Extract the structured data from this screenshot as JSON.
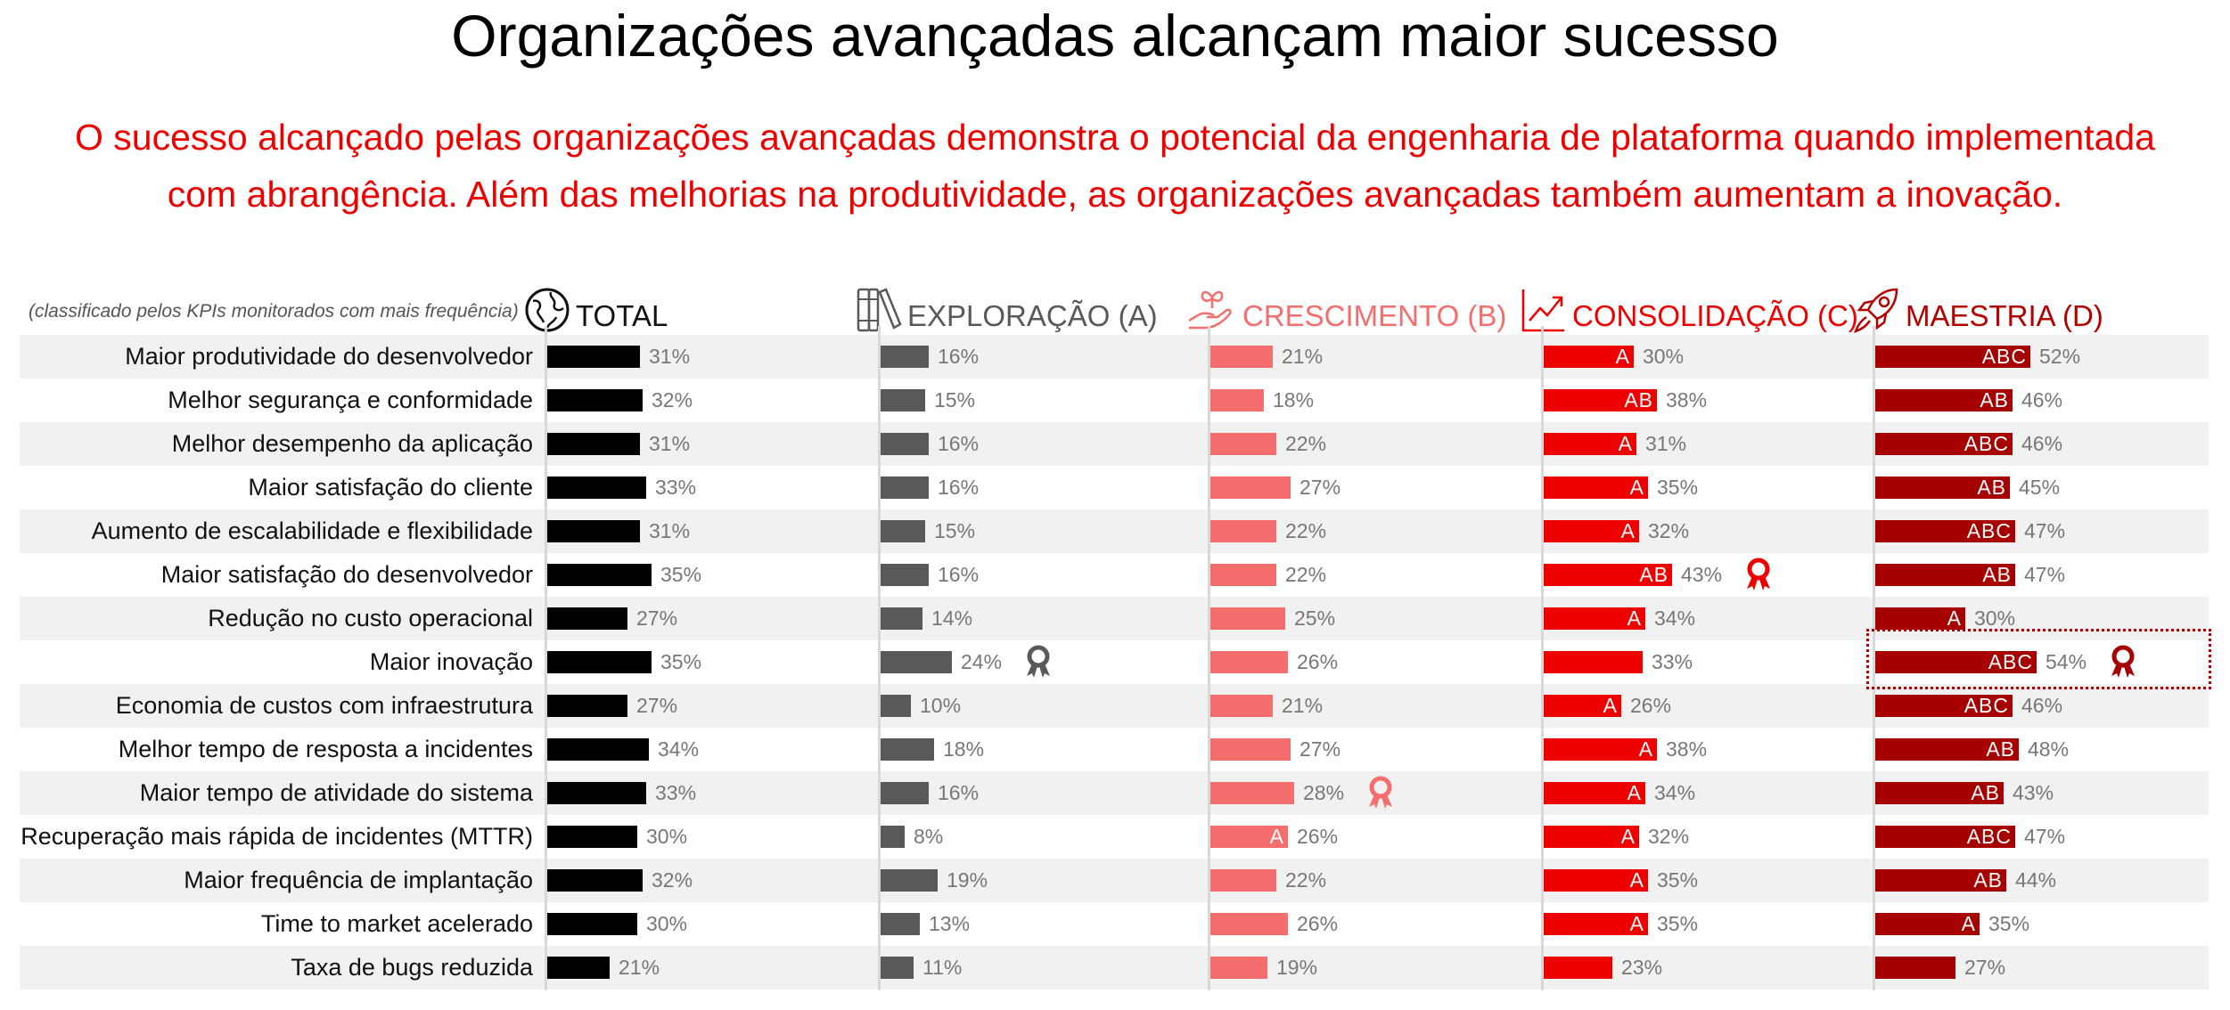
{
  "title": "Organizações avançadas alcançam maior sucesso",
  "subtitle": {
    "line1": "O sucesso alcançado pelas organizações avançadas demonstra o potencial da engenharia de plataforma quando implementada",
    "line2": "com abrangência. Além das melhorias na produtividade, as organizações avançadas também aumentam a inovação."
  },
  "note": "(classificado pelos KPIs monitorados com mais frequência)",
  "columns": [
    {
      "label": "TOTAL",
      "icon": "globe-icon",
      "color": "#000000",
      "text_color": "#111111"
    },
    {
      "label": "EXPLORAÇÃO (A)",
      "icon": "books-icon",
      "color": "#595959",
      "text_color": "#595959"
    },
    {
      "label": "CRESCIMENTO (B)",
      "icon": "sprout-hand-icon",
      "color": "#f56e6e",
      "text_color": "#f56e6e"
    },
    {
      "label": "CONSOLIDAÇÃO (C)",
      "icon": "growth-chart-icon",
      "color": "#ee0000",
      "text_color": "#ee0000"
    },
    {
      "label": "MAESTRIA (D)",
      "icon": "rocket-icon",
      "color": "#a60000",
      "text_color": "#b30000"
    }
  ],
  "chart_data": {
    "type": "bar",
    "title": "Organizações avançadas alcançam maior sucesso",
    "subtitle": "O sucesso alcançado pelas organizações avançadas demonstra o potencial da engenharia de plataforma quando implementada com abrangência. Além das melhorias na produtividade, as organizações avançadas também aumentam a inovação.",
    "note": "(classificado pelos KPIs monitorados com mais frequência)",
    "orientation": "horizontal",
    "categories": [
      "Maior produtividade do desenvolvedor",
      "Melhor segurança e conformidade",
      "Melhor desempenho da aplicação",
      "Maior satisfação do cliente",
      "Aumento de escalabilidade e flexibilidade",
      "Maior satisfação do desenvolvedor",
      "Redução no custo operacional",
      "Maior inovação",
      "Economia de custos com infraestrutura",
      "Melhor tempo de resposta a incidentes",
      "Maior tempo de atividade do sistema",
      "Recuperação mais rápida de incidentes (MTTR)",
      "Maior frequência de implantação",
      "Time to market acelerado",
      "Taxa de bugs reduzida"
    ],
    "series": [
      {
        "name": "TOTAL",
        "values": [
          31,
          32,
          31,
          33,
          31,
          35,
          27,
          35,
          27,
          34,
          33,
          30,
          32,
          30,
          21
        ],
        "sig": [
          "",
          "",
          "",
          "",
          "",
          "",
          "",
          "",
          "",
          "",
          "",
          "",
          "",
          "",
          ""
        ]
      },
      {
        "name": "EXPLORAÇÃO (A)",
        "values": [
          16,
          15,
          16,
          16,
          15,
          16,
          14,
          24,
          10,
          18,
          16,
          8,
          19,
          13,
          11
        ],
        "sig": [
          "",
          "",
          "",
          "",
          "",
          "",
          "",
          "",
          "",
          "",
          "",
          "",
          "",
          "",
          ""
        ]
      },
      {
        "name": "CRESCIMENTO (B)",
        "values": [
          21,
          18,
          22,
          27,
          22,
          22,
          25,
          26,
          21,
          27,
          28,
          26,
          22,
          26,
          19
        ],
        "sig": [
          "",
          "",
          "",
          "",
          "",
          "",
          "",
          "",
          "",
          "",
          "",
          "A",
          "",
          "",
          ""
        ]
      },
      {
        "name": "CONSOLIDAÇÃO (C)",
        "values": [
          30,
          38,
          31,
          35,
          32,
          43,
          34,
          33,
          26,
          38,
          34,
          32,
          35,
          35,
          23
        ],
        "sig": [
          "A",
          "AB",
          "A",
          "A",
          "A",
          "AB",
          "A",
          "",
          "A",
          "A",
          "A",
          "A",
          "A",
          "A",
          ""
        ]
      },
      {
        "name": "MAESTRIA (D)",
        "values": [
          52,
          46,
          46,
          45,
          47,
          47,
          30,
          54,
          46,
          48,
          43,
          47,
          44,
          35,
          27
        ],
        "sig": [
          "ABC",
          "AB",
          "ABC",
          "AB",
          "ABC",
          "AB",
          "A",
          "ABC",
          "ABC",
          "AB",
          "AB",
          "ABC",
          "AB",
          "A",
          ""
        ]
      }
    ],
    "awards": [
      {
        "series": "EXPLORAÇÃO (A)",
        "category": "Maior inovação"
      },
      {
        "series": "CRESCIMENTO (B)",
        "category": "Maior tempo de atividade do sistema"
      },
      {
        "series": "CONSOLIDAÇÃO (C)",
        "category": "Maior satisfação do desenvolvedor"
      },
      {
        "series": "MAESTRIA (D)",
        "category": "Maior inovação",
        "highlighted": true
      }
    ],
    "value_suffix": "%",
    "xlim": [
      0,
      60
    ],
    "grid": false,
    "legend": "column headers"
  }
}
